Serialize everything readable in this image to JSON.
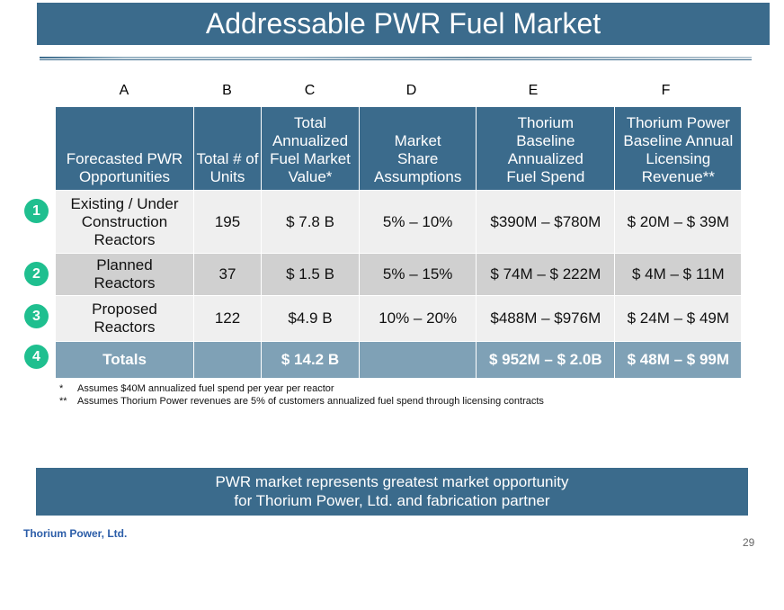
{
  "title": "Addressable PWR Fuel Market",
  "column_letters": [
    "A",
    "B",
    "C",
    "D",
    "E",
    "F"
  ],
  "headers": [
    "Forecasted PWR Opportunities",
    "Total # of Units",
    "Total Annualized Fuel Market Value*",
    "Market Share Assumptions",
    "Thorium Baseline Annualized Fuel Spend",
    "Thorium Power Baseline Annual Licensing Revenue**"
  ],
  "rows": [
    {
      "num": "1",
      "cells": [
        "Existing / Under Construction Reactors",
        "195",
        "$ 7.8 B",
        "5% – 10%",
        "$390M – $780M",
        "$ 20M – $ 39M"
      ]
    },
    {
      "num": "2",
      "cells": [
        "Planned Reactors",
        "37",
        "$ 1.5 B",
        "5% – 15%",
        "$ 74M – $ 222M",
        "$ 4M – $ 11M"
      ]
    },
    {
      "num": "3",
      "cells": [
        "Proposed Reactors",
        "122",
        "$4.9 B",
        "10% – 20%",
        "$488M – $976M",
        "$ 24M – $ 49M"
      ]
    },
    {
      "num": "4",
      "cells": [
        "Totals",
        "",
        "$ 14.2 B",
        "",
        "$ 952M – $ 2.0B",
        "$ 48M – $ 99M"
      ]
    }
  ],
  "footnotes": [
    {
      "mark": "*",
      "text": "Assumes $40M annualized fuel spend per year per reactor"
    },
    {
      "mark": "**",
      "text": "Assumes Thorium Power revenues are 5% of customers annualized fuel spend through licensing contracts"
    }
  ],
  "banner": {
    "line1": "PWR market represents greatest market opportunity",
    "line2": "for Thorium Power, Ltd. and fabrication partner"
  },
  "logo": "Thorium Power, Ltd.",
  "page_number": "29",
  "colors": {
    "header": "#3b6b8c",
    "totals": "#7fa1b6",
    "badge": "#1fbf8f"
  }
}
